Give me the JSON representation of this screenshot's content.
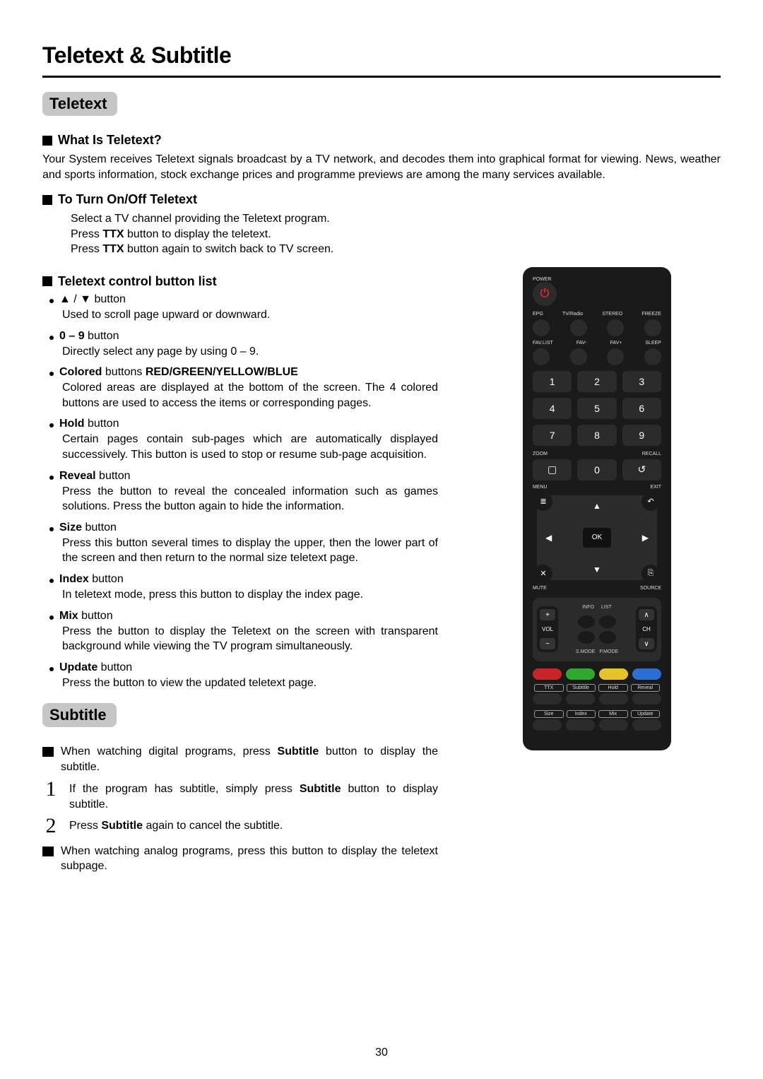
{
  "page": {
    "title": "Teletext & Subtitle",
    "number": "30",
    "background_color": "#ffffff",
    "text_color": "#000000",
    "rule_color": "#000000"
  },
  "section1": {
    "tab": "Teletext",
    "tab_bg": "#c6c6c6",
    "h1": "What Is Teletext?",
    "p1": "Your System receives Teletext signals broadcast by a TV network, and decodes them into graphical format for viewing. News, weather and sports information, stock exchange prices and programme previews are among the many services available.",
    "h2": "To Turn On/Off Teletext",
    "p2a": "Select a TV channel providing the Teletext program.",
    "p2b_pre": "Press ",
    "p2b_bold": "TTX",
    "p2b_post": " button to display the teletext.",
    "p2c_pre": "Press ",
    "p2c_bold": "TTX",
    "p2c_post": " button again to switch back to TV screen.",
    "h3": "Teletext control button list",
    "items": [
      {
        "label_html": "▲ / ▼ button",
        "label_bold": false,
        "desc": "Used to scroll page upward or downward."
      },
      {
        "label_html": "0 – 9",
        "label_tail": " button",
        "label_bold": true,
        "desc": "Directly select any page by using 0 – 9."
      },
      {
        "label_html": "Colored",
        "label_tail": " buttons ",
        "label_bold": true,
        "label_extra_bold": "RED/GREEN/YELLOW/BLUE",
        "desc": "Colored areas are displayed at the bottom of the screen. The 4 colored buttons are used to access the items or corresponding pages."
      },
      {
        "label_html": "Hold",
        "label_tail": "  button",
        "label_bold": true,
        "desc": "Certain pages contain sub-pages which are automatically displayed successively. This button is used to stop or resume sub-page acquisition."
      },
      {
        "label_html": "Reveal",
        "label_tail": " button",
        "label_bold": true,
        "desc": "Press the button to reveal the concealed information such as games solutions. Press the button again to hide the information."
      },
      {
        "label_html": "Size",
        "label_tail": " button",
        "label_bold": true,
        "desc": "Press this button several times to display the upper, then the lower part of the screen and then return to the normal size teletext page."
      },
      {
        "label_html": "Index",
        "label_tail": " button",
        "label_bold": true,
        "desc": "In teletext mode, press this button to display the index page."
      },
      {
        "label_html": "Mix",
        "label_tail": " button",
        "label_bold": true,
        "desc": "Press the button to display the Teletext on the screen with transparent background while viewing the TV program simultaneously."
      },
      {
        "label_html": "Update",
        "label_tail": " button",
        "label_bold": true,
        "desc": "Press the button to view the updated teletext page."
      }
    ]
  },
  "section2": {
    "tab": "Subtitle",
    "note1_pre": "When watching digital programs, press ",
    "note1_bold": "Subtitle",
    "note1_post": " button to display the subtitle.",
    "step1_num": "1",
    "step1_pre": "If the program has subtitle, simply press ",
    "step1_bold": "Subtitle",
    "step1_post": " button to display subtitle.",
    "step2_num": "2",
    "step2_pre": "Press ",
    "step2_bold": "Subtitle",
    "step2_post": " again to cancel the subtitle.",
    "note2": "When watching analog programs, press this button to display the teletext subpage."
  },
  "remote": {
    "bg": "#1a1a1a",
    "button_bg": "#2b2b2b",
    "power_color": "#d8252a",
    "labels_row1": [
      "POWER"
    ],
    "labels_row2": [
      "EPG",
      "TV/Radio",
      "STEREO",
      "FREEZE"
    ],
    "labels_row3": [
      "FAV.LIST",
      "FAV-",
      "FAV+",
      "SLEEP"
    ],
    "numbers": [
      "1",
      "2",
      "3",
      "4",
      "5",
      "6",
      "7",
      "8",
      "9"
    ],
    "bottom_row_labels": [
      "ZOOM",
      "",
      "RECALL"
    ],
    "bottom_row_btns": [
      "▢",
      "0",
      "↺"
    ],
    "nav_corner_labels": [
      "MENU",
      "EXIT",
      "MUTE",
      "SOURCE"
    ],
    "nav_corner_icons": [
      "≣",
      "↶",
      "✕",
      "⎘"
    ],
    "ok": "OK",
    "vol": "VOL",
    "ch": "CH",
    "mid_labels": [
      "INFO",
      "LIST"
    ],
    "mid_labels2": [
      "S.MODE",
      "P.MODE"
    ],
    "color_buttons": [
      "#c8252a",
      "#2ea82e",
      "#e6c22a",
      "#2a6ed6"
    ],
    "label_row1": [
      "TTX",
      "Subtitle",
      "Hold",
      "Reveal"
    ],
    "label_row2": [
      "Size",
      "Index",
      "Mix",
      "Update"
    ]
  }
}
